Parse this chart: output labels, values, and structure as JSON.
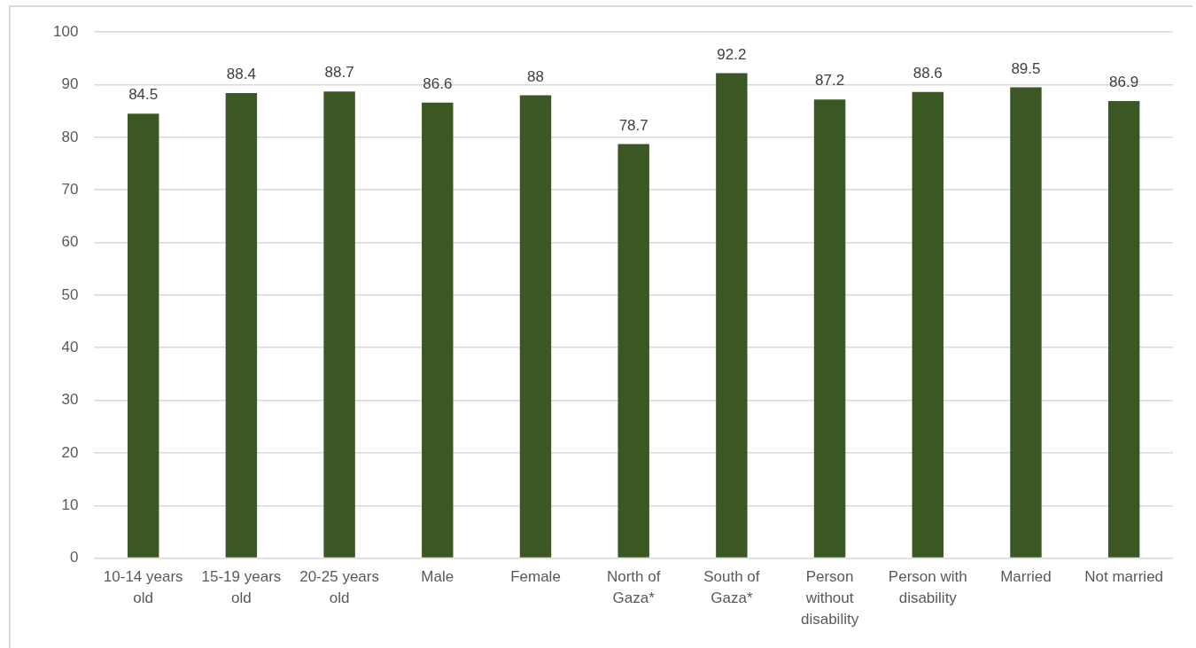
{
  "chart_data": {
    "type": "bar",
    "categories": [
      "10-14 years old",
      "15-19 years old",
      "20-25 years old",
      "Male",
      "Female",
      "North of Gaza*",
      "South of Gaza*",
      "Person without disability",
      "Person with disability",
      "Married",
      "Not married"
    ],
    "values": [
      84.5,
      88.4,
      88.7,
      86.6,
      88,
      78.7,
      92.2,
      87.2,
      88.6,
      89.5,
      86.9
    ],
    "color": "#3b5723",
    "ylim": [
      0,
      100
    ],
    "yticks": [
      0,
      10,
      20,
      30,
      40,
      50,
      60,
      70,
      80,
      90,
      100
    ],
    "grid": "y",
    "data_labels": true
  }
}
